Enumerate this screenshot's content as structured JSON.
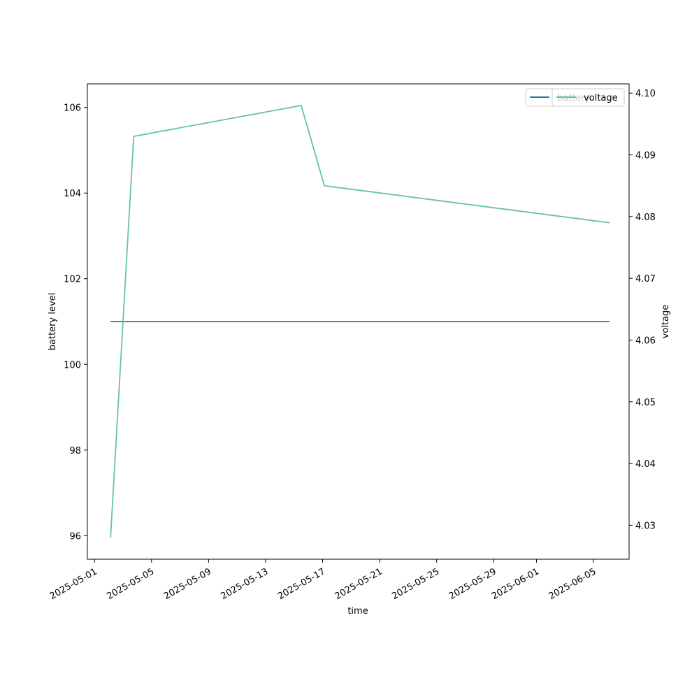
{
  "chart_data": {
    "type": "line",
    "x_axis": {
      "label": "time",
      "type": "date",
      "range": [
        "2025-04-30T12:00",
        "2025-06-07T12:00"
      ],
      "ticks": [
        "2025-05-01",
        "2025-05-05",
        "2025-05-09",
        "2025-05-13",
        "2025-05-17",
        "2025-05-21",
        "2025-05-25",
        "2025-05-29",
        "2025-06-01",
        "2025-06-05"
      ]
    },
    "y_left": {
      "label": "battery level",
      "range": [
        95.45,
        106.55
      ],
      "ticks": [
        "96",
        "98",
        "100",
        "102",
        "104",
        "106"
      ]
    },
    "y_right": {
      "label": "voltage",
      "range": [
        4.0245,
        4.1015
      ],
      "ticks": [
        "4.03",
        "4.04",
        "4.05",
        "4.06",
        "4.07",
        "4.08",
        "4.09",
        "4.10"
      ]
    },
    "series": [
      {
        "name": "battery",
        "axis": "left",
        "color": "#1f77b4",
        "points": [
          {
            "x": "2025-05-02T03:00",
            "y": 101
          },
          {
            "x": "2025-06-06T03:00",
            "y": 101
          }
        ]
      },
      {
        "name": "voltage",
        "axis": "right",
        "color": "#66c2a5",
        "points": [
          {
            "x": "2025-05-02T03:00",
            "y": 4.028
          },
          {
            "x": "2025-05-03T18:00",
            "y": 4.093
          },
          {
            "x": "2025-05-15T12:00",
            "y": 4.098
          },
          {
            "x": "2025-05-17T03:00",
            "y": 4.085
          },
          {
            "x": "2025-06-06T03:00",
            "y": 4.079
          }
        ]
      }
    ],
    "grid": false,
    "legend": {
      "placement": "top-right",
      "entries": [
        {
          "label": "battery",
          "color": "#1f77b4"
        },
        {
          "label": "voltage",
          "color": "#66c2a5"
        }
      ]
    }
  }
}
